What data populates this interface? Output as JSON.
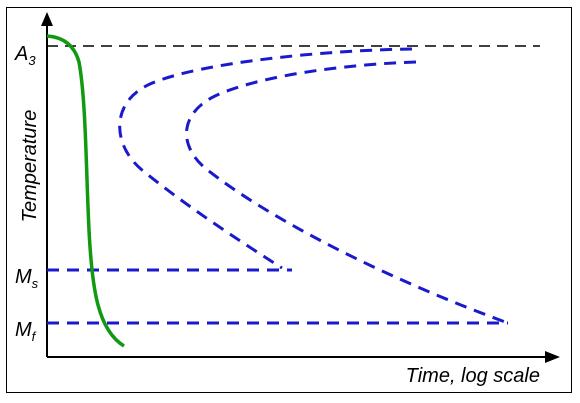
{
  "chart_data": {
    "type": "diagram",
    "title": "",
    "xlabel": "Time, log scale",
    "ylabel": "Temperature",
    "y_levels": [
      {
        "name": "A3",
        "main": "A",
        "sub": "3"
      },
      {
        "name": "Ms",
        "main": "M",
        "sub": "s"
      },
      {
        "name": "Mf",
        "main": "M",
        "sub": "f"
      }
    ],
    "curves": [
      {
        "name": "cooling-curve",
        "style": "solid",
        "color": "#119a11"
      },
      {
        "name": "transformation-start-curve",
        "style": "dashed",
        "color": "#1a1acc"
      },
      {
        "name": "transformation-finish-curve",
        "style": "dashed",
        "color": "#1a1acc"
      },
      {
        "name": "a3-line",
        "style": "dashed",
        "color": "#000000"
      },
      {
        "name": "ms-line",
        "style": "dashed",
        "color": "#1a1acc"
      },
      {
        "name": "mf-line",
        "style": "dashed",
        "color": "#1a1acc"
      }
    ]
  }
}
